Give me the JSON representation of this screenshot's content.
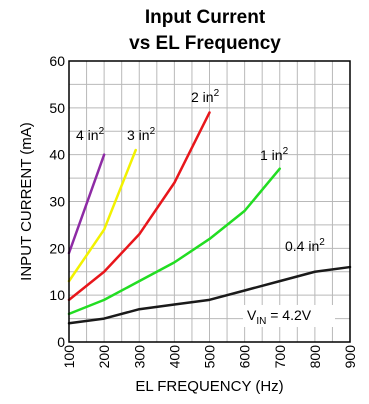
{
  "chart_data": {
    "type": "line",
    "title_line1": "Input Current",
    "title_line2": "vs EL Frequency",
    "xlabel": "EL FREQUENCY (Hz)",
    "ylabel": "INPUT CURRENT (mA)",
    "xlim": [
      100,
      900
    ],
    "ylim": [
      0,
      60
    ],
    "x_ticks": [
      "100",
      "200",
      "300",
      "400",
      "500",
      "600",
      "700",
      "800",
      "900"
    ],
    "y_ticks": [
      "0",
      "10",
      "20",
      "30",
      "40",
      "50",
      "60"
    ],
    "x_minor_step": 50,
    "y_minor_step": 5,
    "grid": true,
    "annotation": {
      "prefix": "V",
      "subscript": "IN",
      "suffix": " = 4.2V"
    },
    "series": [
      {
        "label_base": "0.4 in",
        "label_sup": "2",
        "color": "#1a1a1a",
        "x": [
          100,
          200,
          300,
          400,
          500,
          600,
          700,
          800,
          900
        ],
        "y": [
          4,
          5,
          7,
          8,
          9,
          11,
          13,
          15,
          16
        ]
      },
      {
        "label_base": "1 in",
        "label_sup": "2",
        "color": "#22dd22",
        "x": [
          100,
          200,
          300,
          400,
          500,
          600,
          700
        ],
        "y": [
          6,
          9,
          13,
          17,
          22,
          28,
          37
        ]
      },
      {
        "label_base": "2 in",
        "label_sup": "2",
        "color": "#e8161b",
        "x": [
          100,
          200,
          300,
          400,
          500
        ],
        "y": [
          9,
          15,
          23,
          34,
          49
        ]
      },
      {
        "label_base": "3 in",
        "label_sup": "2",
        "color": "#f2f200",
        "x": [
          100,
          200,
          290
        ],
        "y": [
          13,
          24,
          41
        ]
      },
      {
        "label_base": "4 in",
        "label_sup": "2",
        "color": "#8e2ba5",
        "x": [
          100,
          200
        ],
        "y": [
          19,
          40
        ]
      }
    ]
  }
}
